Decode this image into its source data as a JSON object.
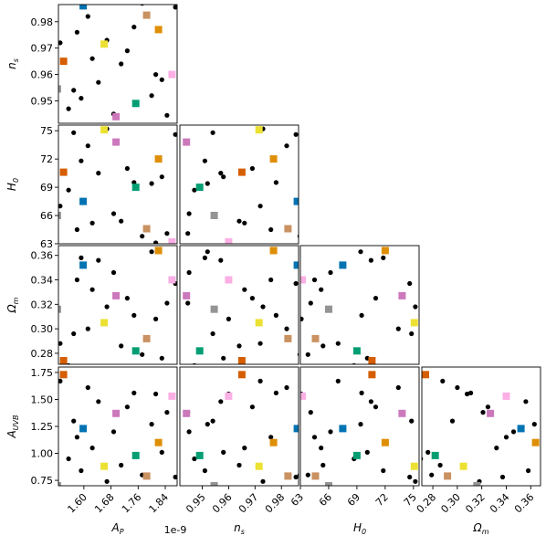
{
  "chart_data": {
    "type": "scatter",
    "kind": "corner-plot",
    "parameters": [
      {
        "key": "AP",
        "label": "A_P",
        "label_main": "A",
        "label_sub": "P",
        "range": [
          1.525,
          1.875
        ],
        "ticks": [
          1.6,
          1.68,
          1.76,
          1.84
        ],
        "tick_labels": [
          "1.60",
          "1.68",
          "1.76",
          "1.84"
        ],
        "scale_note": "1e-9"
      },
      {
        "key": "ns",
        "label": "n_s",
        "label_main": "n",
        "label_sub": "s",
        "range": [
          0.9415,
          0.9865
        ],
        "ticks": [
          0.95,
          0.96,
          0.97,
          0.98
        ],
        "tick_labels": [
          "0.95",
          "0.96",
          "0.97",
          "0.98"
        ],
        "scale_note": ""
      },
      {
        "key": "H0",
        "label": "H_0",
        "label_main": "H",
        "label_sub": "0",
        "range": [
          63.0,
          75.6
        ],
        "ticks": [
          63,
          66,
          69,
          72,
          75
        ],
        "tick_labels": [
          "63",
          "66",
          "69",
          "72",
          "75"
        ],
        "scale_note": ""
      },
      {
        "key": "Om",
        "label": "Ω_m",
        "label_main": "Ω",
        "label_sub": "m",
        "range": [
          0.271,
          0.368
        ],
        "ticks": [
          0.28,
          0.3,
          0.32,
          0.34,
          0.36
        ],
        "tick_labels": [
          "0.28",
          "0.30",
          "0.32",
          "0.34",
          "0.36"
        ],
        "scale_note": ""
      },
      {
        "key": "AUVB",
        "label": "A_UVB",
        "label_main": "A",
        "label_sub": "UVB",
        "range": [
          0.7,
          1.8
        ],
        "ticks": [
          0.75,
          1.0,
          1.25,
          1.5,
          1.75
        ],
        "tick_labels": [
          "0.75",
          "1.00",
          "1.25",
          "1.50",
          "1.75"
        ],
        "scale_note": ""
      }
    ],
    "highlighted": {
      "marker": "square",
      "points": [
        {
          "color": "#0173b2",
          "AP": 1.598,
          "ns": 0.986,
          "H0": 67.5,
          "Om": 0.352,
          "AUVB": 1.23
        },
        {
          "color": "#de8f05",
          "AP": 1.82,
          "ns": 0.977,
          "H0": 72.0,
          "Om": 0.364,
          "AUVB": 1.1
        },
        {
          "color": "#029e73",
          "AP": 1.753,
          "ns": 0.949,
          "H0": 69.0,
          "Om": 0.282,
          "AUVB": 0.98
        },
        {
          "color": "#d55e00",
          "AP": 1.54,
          "ns": 0.965,
          "H0": 70.6,
          "Om": 0.274,
          "AUVB": 1.73
        },
        {
          "color": "#cc78bc",
          "AP": 1.695,
          "ns": 0.944,
          "H0": 73.8,
          "Om": 0.327,
          "AUVB": 1.37
        },
        {
          "color": "#ca9161",
          "AP": 1.785,
          "ns": 0.9825,
          "H0": 64.6,
          "Om": 0.292,
          "AUVB": 0.79
        },
        {
          "color": "#fbafe4",
          "AP": 1.86,
          "ns": 0.96,
          "H0": 63.2,
          "Om": 0.34,
          "AUVB": 1.53
        },
        {
          "color": "#949494",
          "AP": 1.522,
          "ns": 0.9545,
          "H0": 66.0,
          "Om": 0.316,
          "AUVB": 0.7
        },
        {
          "color": "#ece133",
          "AP": 1.66,
          "ns": 0.9715,
          "H0": 75.1,
          "Om": 0.305,
          "AUVB": 0.88
        }
      ]
    },
    "samples": {
      "marker": "dot",
      "color": "#000000",
      "points": [
        {
          "AP": 1.53,
          "ns": 0.972,
          "H0": 67.0,
          "Om": 0.288,
          "AUVB": 1.67
        },
        {
          "AP": 1.555,
          "ns": 0.947,
          "H0": 68.7,
          "Om": 0.27,
          "AUVB": 0.95
        },
        {
          "AP": 1.57,
          "ns": 0.954,
          "H0": 74.8,
          "Om": 0.296,
          "AUVB": 1.3
        },
        {
          "AP": 1.58,
          "ns": 0.976,
          "H0": 64.5,
          "Om": 0.34,
          "AUVB": 1.15
        },
        {
          "AP": 1.592,
          "ns": 0.951,
          "H0": 71.8,
          "Om": 0.358,
          "AUVB": 0.84
        },
        {
          "AP": 1.612,
          "ns": 0.982,
          "H0": 73.4,
          "Om": 0.3,
          "AUVB": 1.61
        },
        {
          "AP": 1.625,
          "ns": 0.966,
          "H0": 65.2,
          "Om": 0.332,
          "AUVB": 1.05
        },
        {
          "AP": 1.643,
          "ns": 0.957,
          "H0": 70.5,
          "Om": 0.356,
          "AUVB": 1.48
        },
        {
          "AP": 1.668,
          "ns": 0.973,
          "H0": 75.2,
          "Om": 0.318,
          "AUVB": 0.74
        },
        {
          "AP": 1.688,
          "ns": 0.945,
          "H0": 66.2,
          "Om": 0.346,
          "AUVB": 1.2
        },
        {
          "AP": 1.71,
          "ns": 0.964,
          "H0": 65.4,
          "Om": 0.286,
          "AUVB": 0.89
        },
        {
          "AP": 1.728,
          "ns": 0.969,
          "H0": 71.0,
          "Om": 0.325,
          "AUVB": 1.43
        },
        {
          "AP": 1.748,
          "ns": 0.978,
          "H0": 69.5,
          "Om": 0.311,
          "AUVB": 1.56
        },
        {
          "AP": 1.772,
          "ns": 0.987,
          "H0": 63.8,
          "Om": 0.279,
          "AUVB": 0.8
        },
        {
          "AP": 1.8,
          "ns": 0.952,
          "H0": 69.4,
          "Om": 0.363,
          "AUVB": 1.27
        },
        {
          "AP": 1.812,
          "ns": 0.96,
          "H0": 63.1,
          "Om": 0.308,
          "AUVB": 1.55
        },
        {
          "AP": 1.83,
          "ns": 0.958,
          "H0": 70.1,
          "Om": 0.276,
          "AUVB": 1.01
        },
        {
          "AP": 1.845,
          "ns": 0.9445,
          "H0": 64.1,
          "Om": 0.321,
          "AUVB": 1.38
        },
        {
          "AP": 1.87,
          "ns": 0.9855,
          "H0": 74.6,
          "Om": 0.337,
          "AUVB": 0.78
        }
      ]
    },
    "grid": false,
    "legend": "none"
  }
}
